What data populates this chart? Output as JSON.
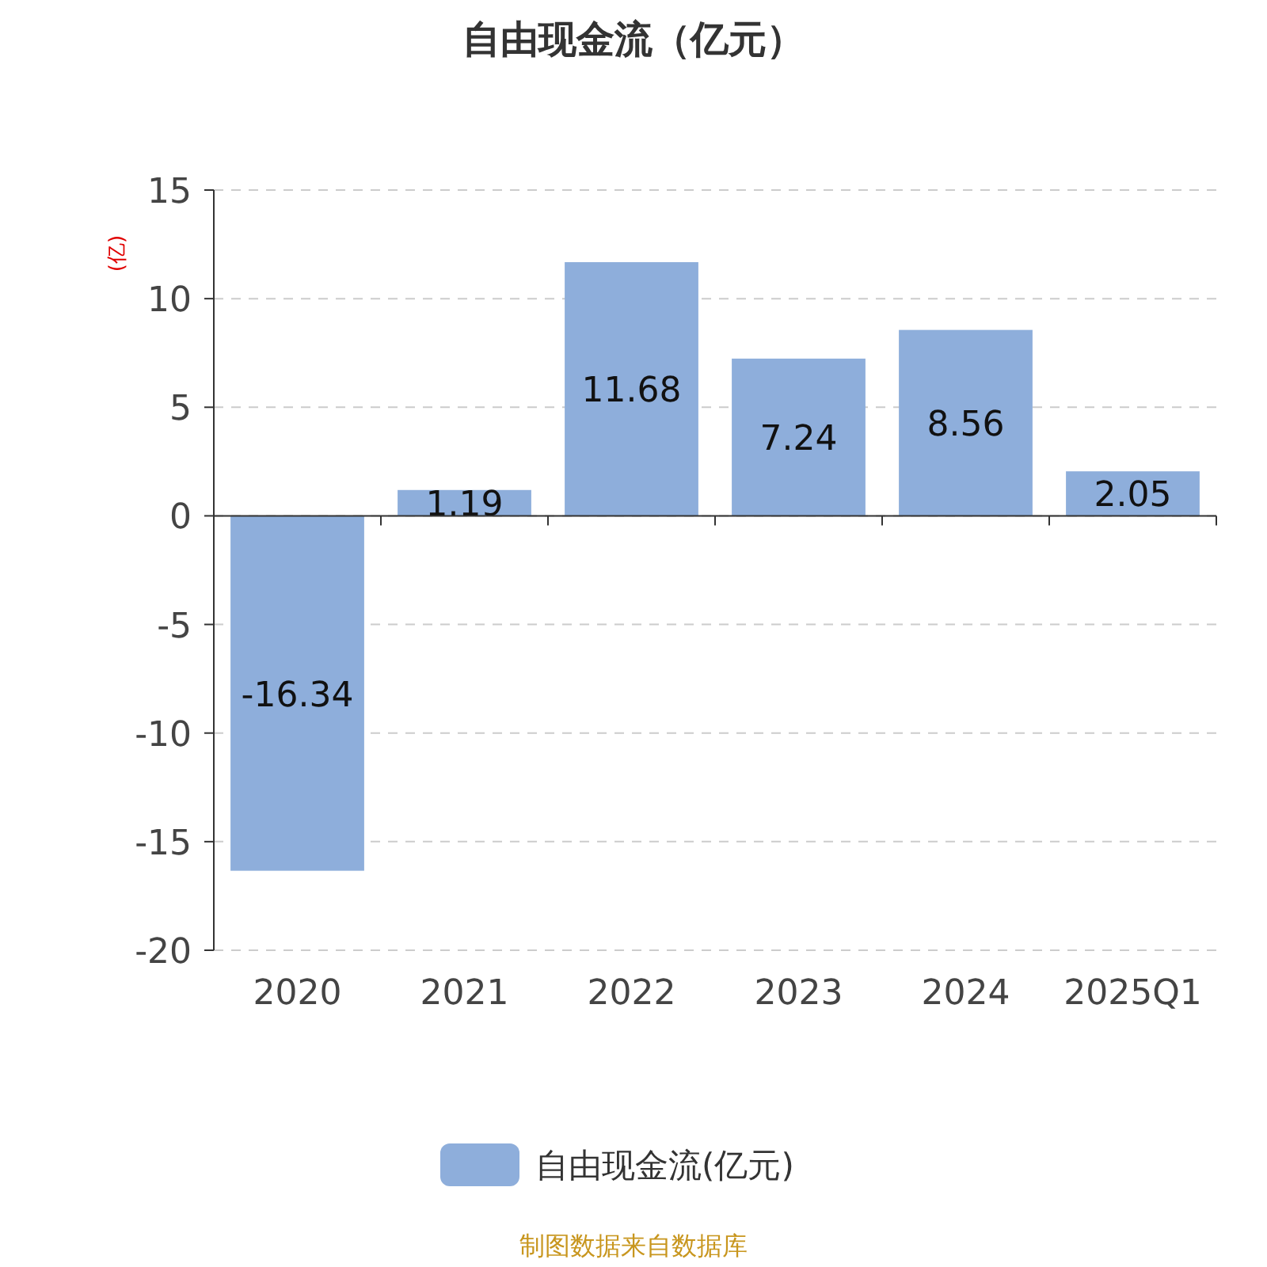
{
  "chart_data": {
    "type": "bar",
    "title": "自由现金流（亿元）",
    "ylabel": "(亿)",
    "categories": [
      "2020",
      "2021",
      "2022",
      "2023",
      "2024",
      "2025Q1"
    ],
    "series": [
      {
        "name": "自由现金流(亿元)",
        "color": "#8eaedb",
        "values": [
          -16.34,
          1.19,
          11.68,
          7.24,
          8.56,
          2.05
        ]
      }
    ],
    "ylim": [
      -20,
      15
    ],
    "yticks": [
      -20,
      -15,
      -10,
      -5,
      0,
      5,
      10,
      15
    ],
    "grid": "y",
    "data_labels": true,
    "legend": "bottom",
    "annotations": [
      "制图数据来自数据库"
    ]
  }
}
